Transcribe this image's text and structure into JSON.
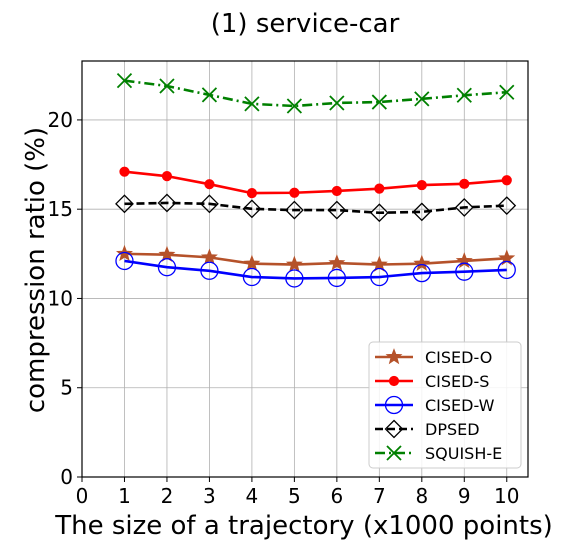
{
  "chart_data": {
    "type": "line",
    "title": "(1) service-car",
    "xlabel": "The size of a trajectory (x1000 points)",
    "ylabel": "compression ratio (%)",
    "xlim": [
      0,
      10.5
    ],
    "ylim": [
      0,
      23.3
    ],
    "xticks": [
      "0",
      "1",
      "2",
      "3",
      "4",
      "5",
      "6",
      "7",
      "8",
      "9",
      "10"
    ],
    "yticks": [
      "0",
      "5",
      "10",
      "15",
      "20"
    ],
    "grid": true,
    "legend_position": "bottom-right",
    "x": [
      1,
      2,
      3,
      4,
      5,
      6,
      7,
      8,
      9,
      10
    ],
    "series": [
      {
        "name": "CISED-O",
        "color": "#b5522a",
        "marker": "star",
        "dash": "solid",
        "values": [
          12.5,
          12.45,
          12.3,
          11.95,
          11.9,
          11.98,
          11.9,
          11.95,
          12.1,
          12.25
        ]
      },
      {
        "name": "CISED-S",
        "color": "#ff0000",
        "marker": "circle-filled",
        "dash": "solid",
        "values": [
          17.1,
          16.85,
          16.4,
          15.9,
          15.92,
          16.02,
          16.15,
          16.35,
          16.42,
          16.62
        ]
      },
      {
        "name": "CISED-W",
        "color": "#0000ff",
        "marker": "circle-open",
        "dash": "solid",
        "values": [
          12.1,
          11.75,
          11.55,
          11.2,
          11.12,
          11.15,
          11.2,
          11.42,
          11.5,
          11.6
        ]
      },
      {
        "name": "DPSED",
        "color": "#000000",
        "marker": "diamond-open",
        "dash": "dashed",
        "values": [
          15.3,
          15.35,
          15.3,
          15.02,
          14.95,
          14.95,
          14.8,
          14.85,
          15.1,
          15.2
        ]
      },
      {
        "name": "SQUISH-E",
        "color": "#008000",
        "marker": "x",
        "dash": "dashdot",
        "values": [
          22.2,
          21.9,
          21.4,
          20.9,
          20.78,
          20.95,
          21.0,
          21.18,
          21.38,
          21.55
        ]
      }
    ]
  }
}
